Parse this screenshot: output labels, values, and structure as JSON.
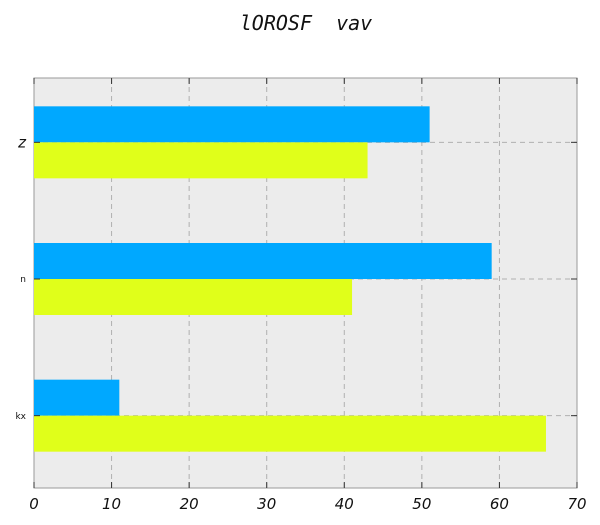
{
  "chart_data": {
    "type": "bar",
    "orientation": "horizontal",
    "title": "lOROSF  vav",
    "xlabel": "",
    "ylabel": "",
    "categories": [
      "z",
      "n",
      "kx"
    ],
    "series": [
      {
        "values": [
          51,
          59,
          11
        ],
        "color": "#00a8ff"
      },
      {
        "values": [
          43,
          41,
          66
        ],
        "color": "#e0ff1a"
      }
    ],
    "xlim": [
      0,
      70
    ],
    "x_ticks": [
      0,
      10,
      20,
      30,
      40,
      50,
      60,
      70
    ],
    "grid": true,
    "legend": "none",
    "background_color": "#ececec"
  }
}
